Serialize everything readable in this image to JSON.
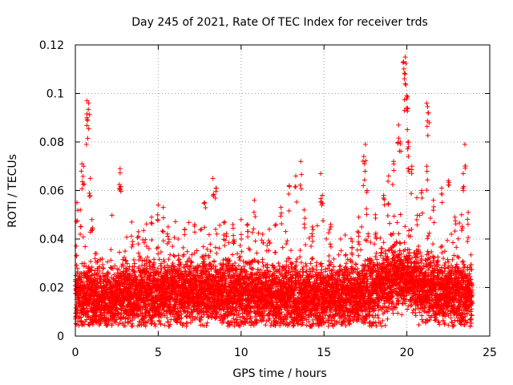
{
  "chart_data": {
    "type": "scatter",
    "title": "Day 245 of 2021, Rate Of TEC Index for receiver trds",
    "xlabel": "GPS time / hours",
    "ylabel": "ROTI / TECUs",
    "xlim": [
      0,
      25
    ],
    "ylim": [
      0,
      0.12
    ],
    "xticks": [
      0,
      5,
      10,
      15,
      20,
      25
    ],
    "xtick_labels": [
      "0",
      "5",
      "10",
      "15",
      "20",
      "25"
    ],
    "yticks": [
      0,
      0.02,
      0.04,
      0.06,
      0.08,
      0.1,
      0.12
    ],
    "ytick_labels": [
      "0",
      "0.02",
      "0.04",
      "0.06",
      "0.08",
      "0.1",
      "0.12"
    ],
    "grid": true,
    "marker": "+",
    "marker_color": "#ff0000",
    "series": [
      {
        "name": "ROTI",
        "dense_band": {
          "x_start": 0,
          "x_end": 23.95,
          "x_step": 0.01,
          "baseline_by_hour": [
            [
              0,
              0.017
            ],
            [
              2,
              0.016
            ],
            [
              4,
              0.017
            ],
            [
              6,
              0.018
            ],
            [
              8,
              0.019
            ],
            [
              10,
              0.017
            ],
            [
              12,
              0.017
            ],
            [
              14,
              0.016
            ],
            [
              16,
              0.017
            ],
            [
              18,
              0.018
            ],
            [
              19.5,
              0.025
            ],
            [
              20.5,
              0.022
            ],
            [
              22,
              0.018
            ],
            [
              24,
              0.017
            ]
          ],
          "spread": 0.009,
          "floor": 0.004
        },
        "peaks": [
          [
            0.1,
            0.055
          ],
          [
            0.3,
            0.052
          ],
          [
            0.4,
            0.071
          ],
          [
            0.5,
            0.07
          ],
          [
            0.7,
            0.097
          ],
          [
            0.7,
            0.09
          ],
          [
            0.8,
            0.096
          ],
          [
            0.9,
            0.065
          ],
          [
            1.0,
            0.048
          ],
          [
            1.2,
            0.034
          ],
          [
            2.2,
            0.028
          ],
          [
            2.7,
            0.069
          ],
          [
            2.7,
            0.061
          ],
          [
            3.0,
            0.035
          ],
          [
            3.4,
            0.047
          ],
          [
            3.8,
            0.043
          ],
          [
            4.3,
            0.037
          ],
          [
            4.6,
            0.049
          ],
          [
            5.0,
            0.054
          ],
          [
            5.3,
            0.053
          ],
          [
            5.6,
            0.045
          ],
          [
            6.2,
            0.04
          ],
          [
            6.6,
            0.044
          ],
          [
            7.2,
            0.046
          ],
          [
            7.6,
            0.044
          ],
          [
            7.8,
            0.055
          ],
          [
            8.3,
            0.065
          ],
          [
            8.5,
            0.061
          ],
          [
            9.0,
            0.047
          ],
          [
            9.5,
            0.046
          ],
          [
            10.0,
            0.048
          ],
          [
            10.4,
            0.046
          ],
          [
            10.8,
            0.056
          ],
          [
            11.3,
            0.042
          ],
          [
            11.7,
            0.044
          ],
          [
            12.1,
            0.046
          ],
          [
            12.4,
            0.053
          ],
          [
            12.9,
            0.062
          ],
          [
            13.3,
            0.066
          ],
          [
            13.6,
            0.072
          ],
          [
            13.8,
            0.052
          ],
          [
            14.3,
            0.045
          ],
          [
            14.8,
            0.067
          ],
          [
            14.9,
            0.058
          ],
          [
            15.4,
            0.046
          ],
          [
            16.0,
            0.04
          ],
          [
            16.7,
            0.039
          ],
          [
            17.1,
            0.049
          ],
          [
            17.4,
            0.074
          ],
          [
            17.5,
            0.079
          ],
          [
            17.6,
            0.06
          ],
          [
            18.1,
            0.05
          ],
          [
            18.6,
            0.058
          ],
          [
            18.9,
            0.066
          ],
          [
            19.2,
            0.072
          ],
          [
            19.5,
            0.087
          ],
          [
            19.6,
            0.08
          ],
          [
            19.8,
            0.113
          ],
          [
            19.9,
            0.115
          ],
          [
            19.9,
            0.104
          ],
          [
            20.0,
            0.099
          ],
          [
            20.0,
            0.094
          ],
          [
            20.1,
            0.08
          ],
          [
            20.1,
            0.078
          ],
          [
            20.3,
            0.07
          ],
          [
            20.6,
            0.057
          ],
          [
            20.9,
            0.06
          ],
          [
            21.2,
            0.07
          ],
          [
            21.2,
            0.096
          ],
          [
            21.3,
            0.092
          ],
          [
            21.6,
            0.056
          ],
          [
            22.1,
            0.061
          ],
          [
            22.5,
            0.064
          ],
          [
            22.9,
            0.049
          ],
          [
            23.3,
            0.05
          ],
          [
            23.4,
            0.067
          ],
          [
            23.5,
            0.079
          ],
          [
            23.7,
            0.051
          ]
        ]
      }
    ]
  }
}
